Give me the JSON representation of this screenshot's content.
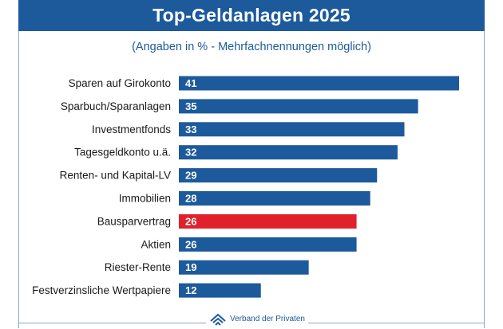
{
  "header": {
    "title": "Top-Geldanlagen 2025"
  },
  "subtitle": "(Angaben in % - Mehrfachnennungen möglich)",
  "footer": {
    "logo_text": "Verband der Privaten",
    "logo_icon": "house-icon"
  },
  "colors": {
    "bar": "#1d5a9c",
    "highlight": "#e0212b",
    "header": "#1d5a9c"
  },
  "chart_data": {
    "type": "bar",
    "orientation": "horizontal",
    "title": "Top-Geldanlagen 2025",
    "subtitle": "(Angaben in % - Mehrfachnennungen möglich)",
    "unit": "%",
    "categories": [
      "Sparen auf Girokonto",
      "Sparbuch/Sparanlagen",
      "Investmentfonds",
      "Tagesgeldkonto u.ä.",
      "Renten- und Kapital-LV",
      "Immobilien",
      "Bausparvertrag",
      "Aktien",
      "Riester-Rente",
      "Festverzinsliche Wertpapiere"
    ],
    "values": [
      41,
      35,
      33,
      32,
      29,
      28,
      26,
      26,
      19,
      12
    ],
    "highlight_index": 6,
    "xlim": [
      0,
      41
    ],
    "grid": false
  }
}
